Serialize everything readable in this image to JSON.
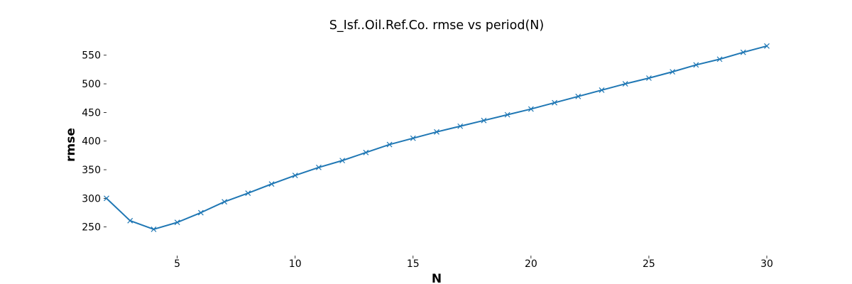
{
  "chart_data": {
    "type": "line",
    "title": "S_Isf..Oil.Ref.Co. rmse vs period(N)",
    "xlabel": "N",
    "ylabel": "rmse",
    "xlim": [
      2,
      30
    ],
    "ylim": [
      200,
      572
    ],
    "xticks": [
      5,
      10,
      15,
      20,
      25,
      30
    ],
    "yticks": [
      250,
      300,
      350,
      400,
      450,
      500,
      550
    ],
    "grid": false,
    "legend": "none",
    "marker": "x",
    "color": "#1f77b4",
    "x": [
      2,
      3,
      4,
      5,
      6,
      7,
      8,
      9,
      10,
      11,
      12,
      13,
      14,
      15,
      16,
      17,
      18,
      19,
      20,
      21,
      22,
      23,
      24,
      25,
      26,
      27,
      28,
      29,
      30
    ],
    "series": [
      {
        "values": [
          300,
          261,
          246,
          258,
          275,
          294,
          309,
          325,
          340,
          354,
          366,
          380,
          394,
          405,
          416,
          426,
          436,
          446,
          456,
          467,
          478,
          489,
          500,
          510,
          521,
          533,
          543,
          555,
          566
        ]
      }
    ]
  }
}
